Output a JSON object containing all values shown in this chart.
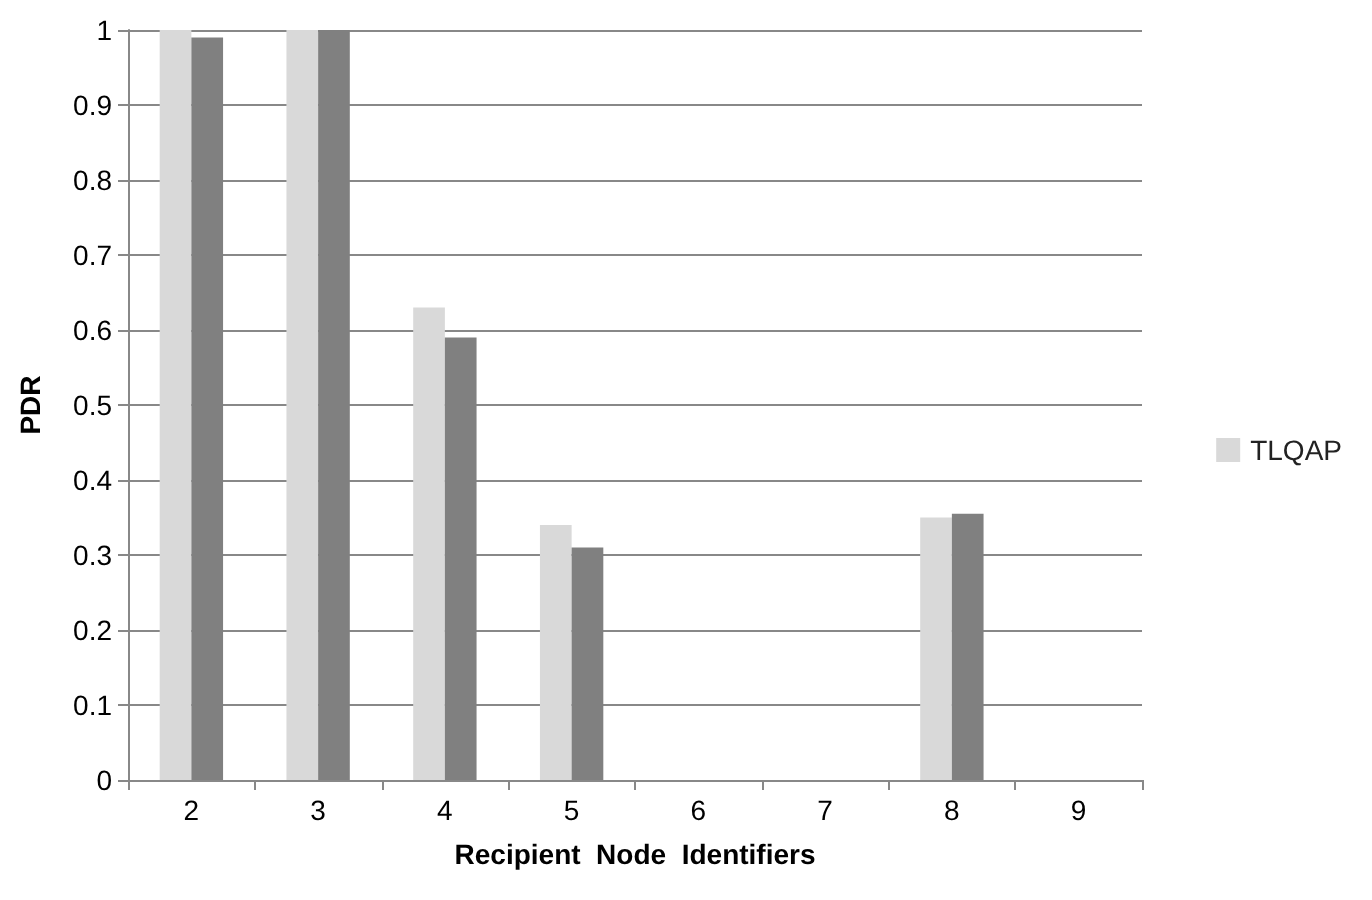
{
  "chart_data": {
    "type": "bar",
    "xlabel": "Recipient  Node  Identifiers",
    "ylabel": "PDR",
    "categories": [
      "2",
      "3",
      "4",
      "5",
      "6",
      "7",
      "8",
      "9"
    ],
    "series": [
      {
        "name": "TLQAP",
        "color": "#d9d9d9",
        "values": [
          1.0,
          1.0,
          0.63,
          0.34,
          0,
          0,
          0.35,
          0
        ]
      },
      {
        "color": "#808080",
        "values": [
          0.99,
          1.0,
          0.59,
          0.31,
          0,
          0,
          0.355,
          0
        ]
      }
    ],
    "ylim": [
      0,
      1
    ],
    "yticks": [
      0,
      0.1,
      0.2,
      0.3,
      0.4,
      0.5,
      0.6,
      0.7,
      0.8,
      0.9,
      1
    ],
    "grid": "y",
    "legend": "right"
  }
}
